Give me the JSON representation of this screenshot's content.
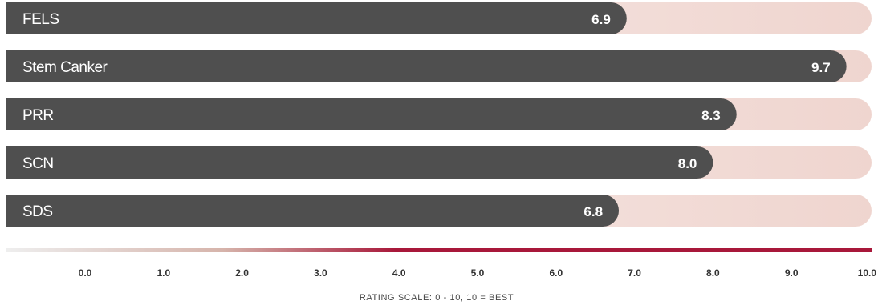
{
  "chart_data": {
    "type": "bar",
    "orientation": "horizontal",
    "categories": [
      "FELS",
      "Stem Canker",
      "PRR",
      "SCN",
      "SDS"
    ],
    "values": [
      6.9,
      9.7,
      8.3,
      8.0,
      6.8
    ],
    "value_labels": [
      "6.9",
      "9.7",
      "8.3",
      "8.0",
      "6.8"
    ],
    "xlim": [
      0,
      10
    ],
    "ticks": [
      "0.0",
      "1.0",
      "2.0",
      "3.0",
      "4.0",
      "5.0",
      "6.0",
      "7.0",
      "8.0",
      "9.0",
      "10.0"
    ],
    "xlabel": "RATING SCALE: 0 - 10, 10 = BEST",
    "grid": false,
    "colors": {
      "bar": "#4f4f4f",
      "track_light": "#fbf0ee",
      "track_dark": "#efd5cf",
      "scale_start": "#eeeeee",
      "scale_mid": "#d6b4ab",
      "scale_end": "#a8183a",
      "text_on_bar": "#ffffff",
      "tick_text": "#333333"
    }
  }
}
